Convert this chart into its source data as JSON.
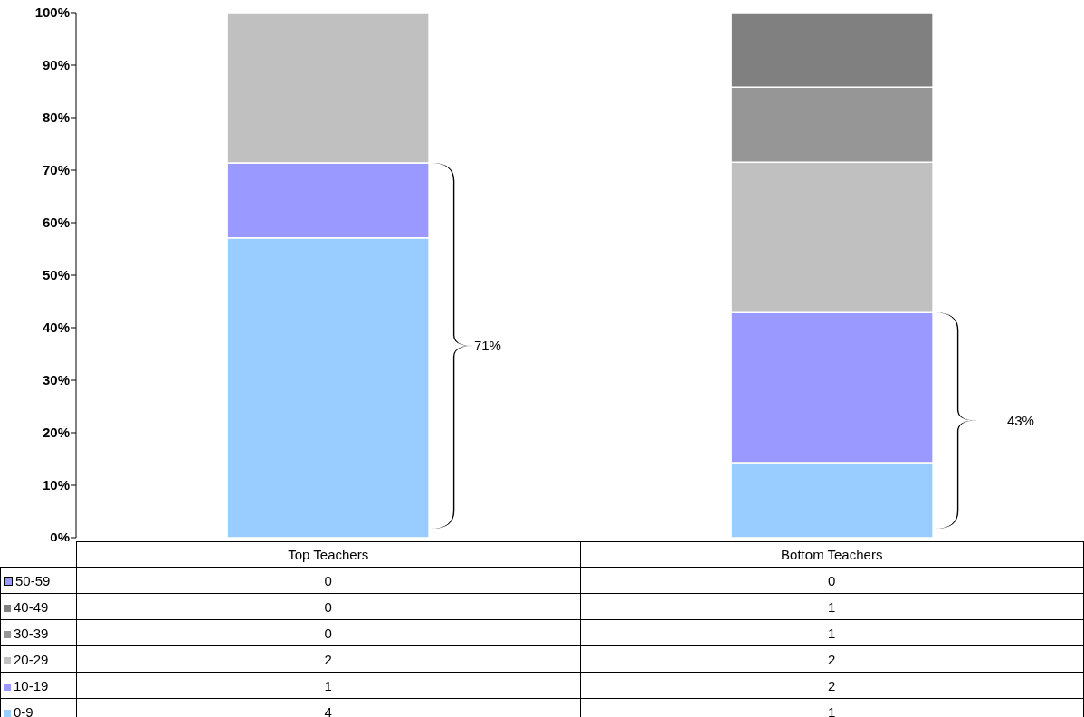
{
  "chart_data": [
    {
      "type": "bar",
      "stacked": true,
      "categories": [
        null,
        null
      ],
      "series": [
        {
          "color": "#99ccff",
          "values": [
            57.1,
            14.3
          ]
        },
        {
          "color": "#9999ff",
          "values": [
            14.3,
            28.6
          ]
        },
        {
          "color": "#c0c0c0",
          "values": [
            28.6,
            28.6
          ]
        },
        {
          "color": "#969696",
          "values": [
            0,
            14.3
          ]
        },
        {
          "color": "#808080",
          "values": [
            0,
            14.3
          ]
        },
        {
          "color": "#9999ff",
          "values": [
            0,
            0
          ]
        }
      ],
      "ylim": [
        0,
        100
      ],
      "yticks": [
        {
          "value": 0,
          "label": "0%"
        },
        {
          "value": 10,
          "label": "10%"
        },
        {
          "value": 20,
          "label": "20%"
        },
        {
          "value": 30,
          "label": "30%"
        },
        {
          "value": 40,
          "label": "40%"
        },
        {
          "value": 50,
          "label": "50%"
        },
        {
          "value": 60,
          "label": "60%"
        },
        {
          "value": 70,
          "label": "70%"
        },
        {
          "value": 80,
          "label": "80%"
        },
        {
          "value": 90,
          "label": "90%"
        },
        {
          "value": 100,
          "label": "100%"
        }
      ],
      "grid": false,
      "annotations": [
        "71%",
        "43%"
      ]
    },
    {
      "type": "other",
      "categories": [
        "Top Teachers",
        "Bottom Teachers"
      ],
      "series": [
        {
          "name": "0-9",
          "color": "#99ccff",
          "values": [
            4,
            1
          ]
        },
        {
          "name": "10-19",
          "color": "#9999ff",
          "values": [
            1,
            2
          ]
        },
        {
          "name": "20-29",
          "color": "#c0c0c0",
          "values": [
            2,
            2
          ]
        },
        {
          "name": "30-39",
          "color": "#969696",
          "values": [
            0,
            1
          ]
        },
        {
          "name": "40-49",
          "color": "#808080",
          "values": [
            0,
            1
          ]
        },
        {
          "name": "50-59",
          "color": "#9999ff",
          "values": [
            0,
            0
          ]
        }
      ],
      "data_labels": true,
      "legend": "left"
    }
  ]
}
